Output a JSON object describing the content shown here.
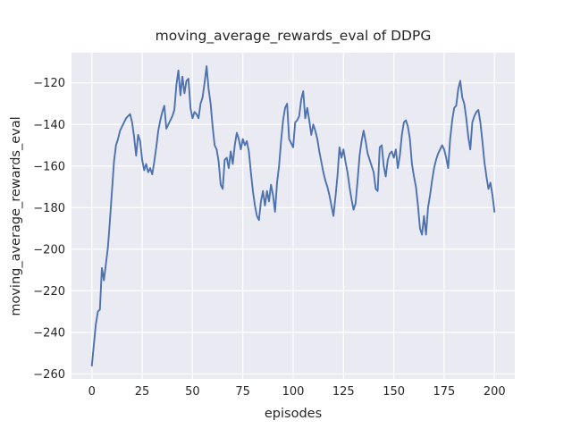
{
  "style": {
    "figure_bg": "#ffffff",
    "plot_bg": "#eaeaf2",
    "grid_color": "#ffffff",
    "text_color": "#262626"
  },
  "chart_data": {
    "type": "line",
    "title": "moving_average_rewards_eval of DDPG",
    "xlabel": "episodes",
    "ylabel": "moving_average_rewards_eval",
    "line_color": "#4c72b0",
    "grid": true,
    "legend": "none",
    "x_ticks": [
      0,
      25,
      50,
      75,
      100,
      125,
      150,
      175,
      200
    ],
    "y_ticks": [
      -120,
      -140,
      -160,
      -180,
      -200,
      -220,
      -240,
      -260
    ],
    "xlim": [
      -10.1,
      210.1
    ],
    "ylim": [
      -262.4,
      -105.5
    ],
    "series": [
      {
        "name": "moving_average_rewards_eval",
        "x_start": 0,
        "x_step": 1,
        "values": [
          -256,
          -246,
          -236,
          -230,
          -229,
          -209,
          -215,
          -207,
          -199,
          -186,
          -172,
          -158,
          -150,
          -147,
          -143,
          -141,
          -139,
          -137,
          -136,
          -135,
          -139,
          -146,
          -155,
          -145,
          -148,
          -157,
          -162,
          -159,
          -163,
          -161,
          -164,
          -158,
          -151,
          -143,
          -138,
          -134,
          -131,
          -142,
          -140,
          -138,
          -136,
          -133,
          -121,
          -114,
          -126,
          -117,
          -125,
          -119,
          -118,
          -132,
          -137,
          -134,
          -135,
          -137,
          -130,
          -127,
          -120,
          -112,
          -123,
          -130,
          -141,
          -150,
          -152,
          -158,
          -169,
          -171,
          -157,
          -156,
          -161,
          -153,
          -159,
          -150,
          -144,
          -147,
          -152,
          -147,
          -150,
          -148,
          -153,
          -163,
          -172,
          -179,
          -184,
          -186,
          -177,
          -172,
          -179,
          -172,
          -177,
          -169,
          -174,
          -182,
          -168,
          -160,
          -148,
          -138,
          -132,
          -130,
          -147,
          -149,
          -151,
          -139,
          -138,
          -136,
          -128,
          -124,
          -137,
          -132,
          -138,
          -145,
          -140,
          -143,
          -147,
          -153,
          -158,
          -163,
          -167,
          -170,
          -174,
          -179,
          -184,
          -175,
          -165,
          -151,
          -156,
          -152,
          -158,
          -163,
          -170,
          -176,
          -181,
          -178,
          -167,
          -155,
          -148,
          -143,
          -148,
          -154,
          -157,
          -160,
          -163,
          -171,
          -172,
          -151,
          -150,
          -160,
          -165,
          -157,
          -154,
          -153,
          -156,
          -152,
          -161,
          -155,
          -145,
          -139,
          -138,
          -141,
          -147,
          -159,
          -165,
          -170,
          -179,
          -190,
          -193,
          -184,
          -193,
          -180,
          -174,
          -167,
          -161,
          -157,
          -154,
          -152,
          -150,
          -152,
          -156,
          -161,
          -147,
          -138,
          -132,
          -131,
          -123,
          -119,
          -127,
          -130,
          -137,
          -146,
          -152,
          -139,
          -136,
          -134,
          -133,
          -139,
          -148,
          -158,
          -165,
          -171,
          -168,
          -174,
          -182
        ]
      }
    ]
  }
}
